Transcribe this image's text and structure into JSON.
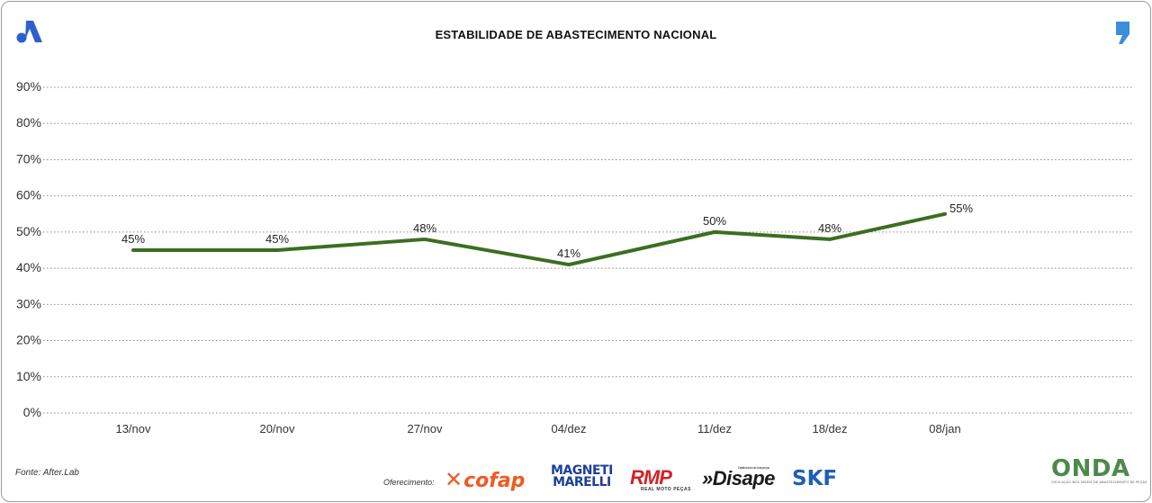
{
  "chart_data": {
    "type": "line",
    "title": "ESTABILIDADE DE ABASTECIMENTO NACIONAL",
    "categories": [
      "13/nov",
      "20/nov",
      "27/nov",
      "04/dez",
      "11/dez",
      "18/dez",
      "08/jan"
    ],
    "series": [
      {
        "values": [
          45,
          45,
          48,
          41,
          50,
          48,
          55
        ],
        "labels": [
          "45%",
          "45%",
          "48%",
          "41%",
          "50%",
          "48%",
          "55%"
        ],
        "color": "#3b6e22"
      }
    ],
    "yticks": [
      "0%",
      "10%",
      "20%",
      "30%",
      "40%",
      "50%",
      "60%",
      "70%",
      "80%",
      "90%"
    ],
    "ylim": [
      0,
      90
    ],
    "grid": "horizontal dotted",
    "legend": "none"
  },
  "footer": {
    "source": "Fonte: After.Lab",
    "sponsor_label": "Oferecimento:",
    "sponsors": {
      "cofap": "cofap",
      "magneti_1": "MAGNETI",
      "magneti_2": "MARELLI",
      "rmp": "RMP",
      "rmp_sub": "REAL MOTO PEÇAS",
      "disape": "»Disape",
      "disape_sub": "Distribuidora de Autopeças",
      "skf": "SKF",
      "onda": "ONDA",
      "onda_sub": "OSCILAÇÃO NOS NÍVEIS DE ABASTECIMENTO DE PEÇAS"
    }
  },
  "colors": {
    "line": "#3b6e22",
    "brand_blue": "#1f5fb4",
    "logo_left": "#2d5fcf",
    "logo_right": "#3b8ed8"
  },
  "icons": {
    "left_logo": "stylized-a-logo",
    "right_logo": "comma-logo"
  }
}
